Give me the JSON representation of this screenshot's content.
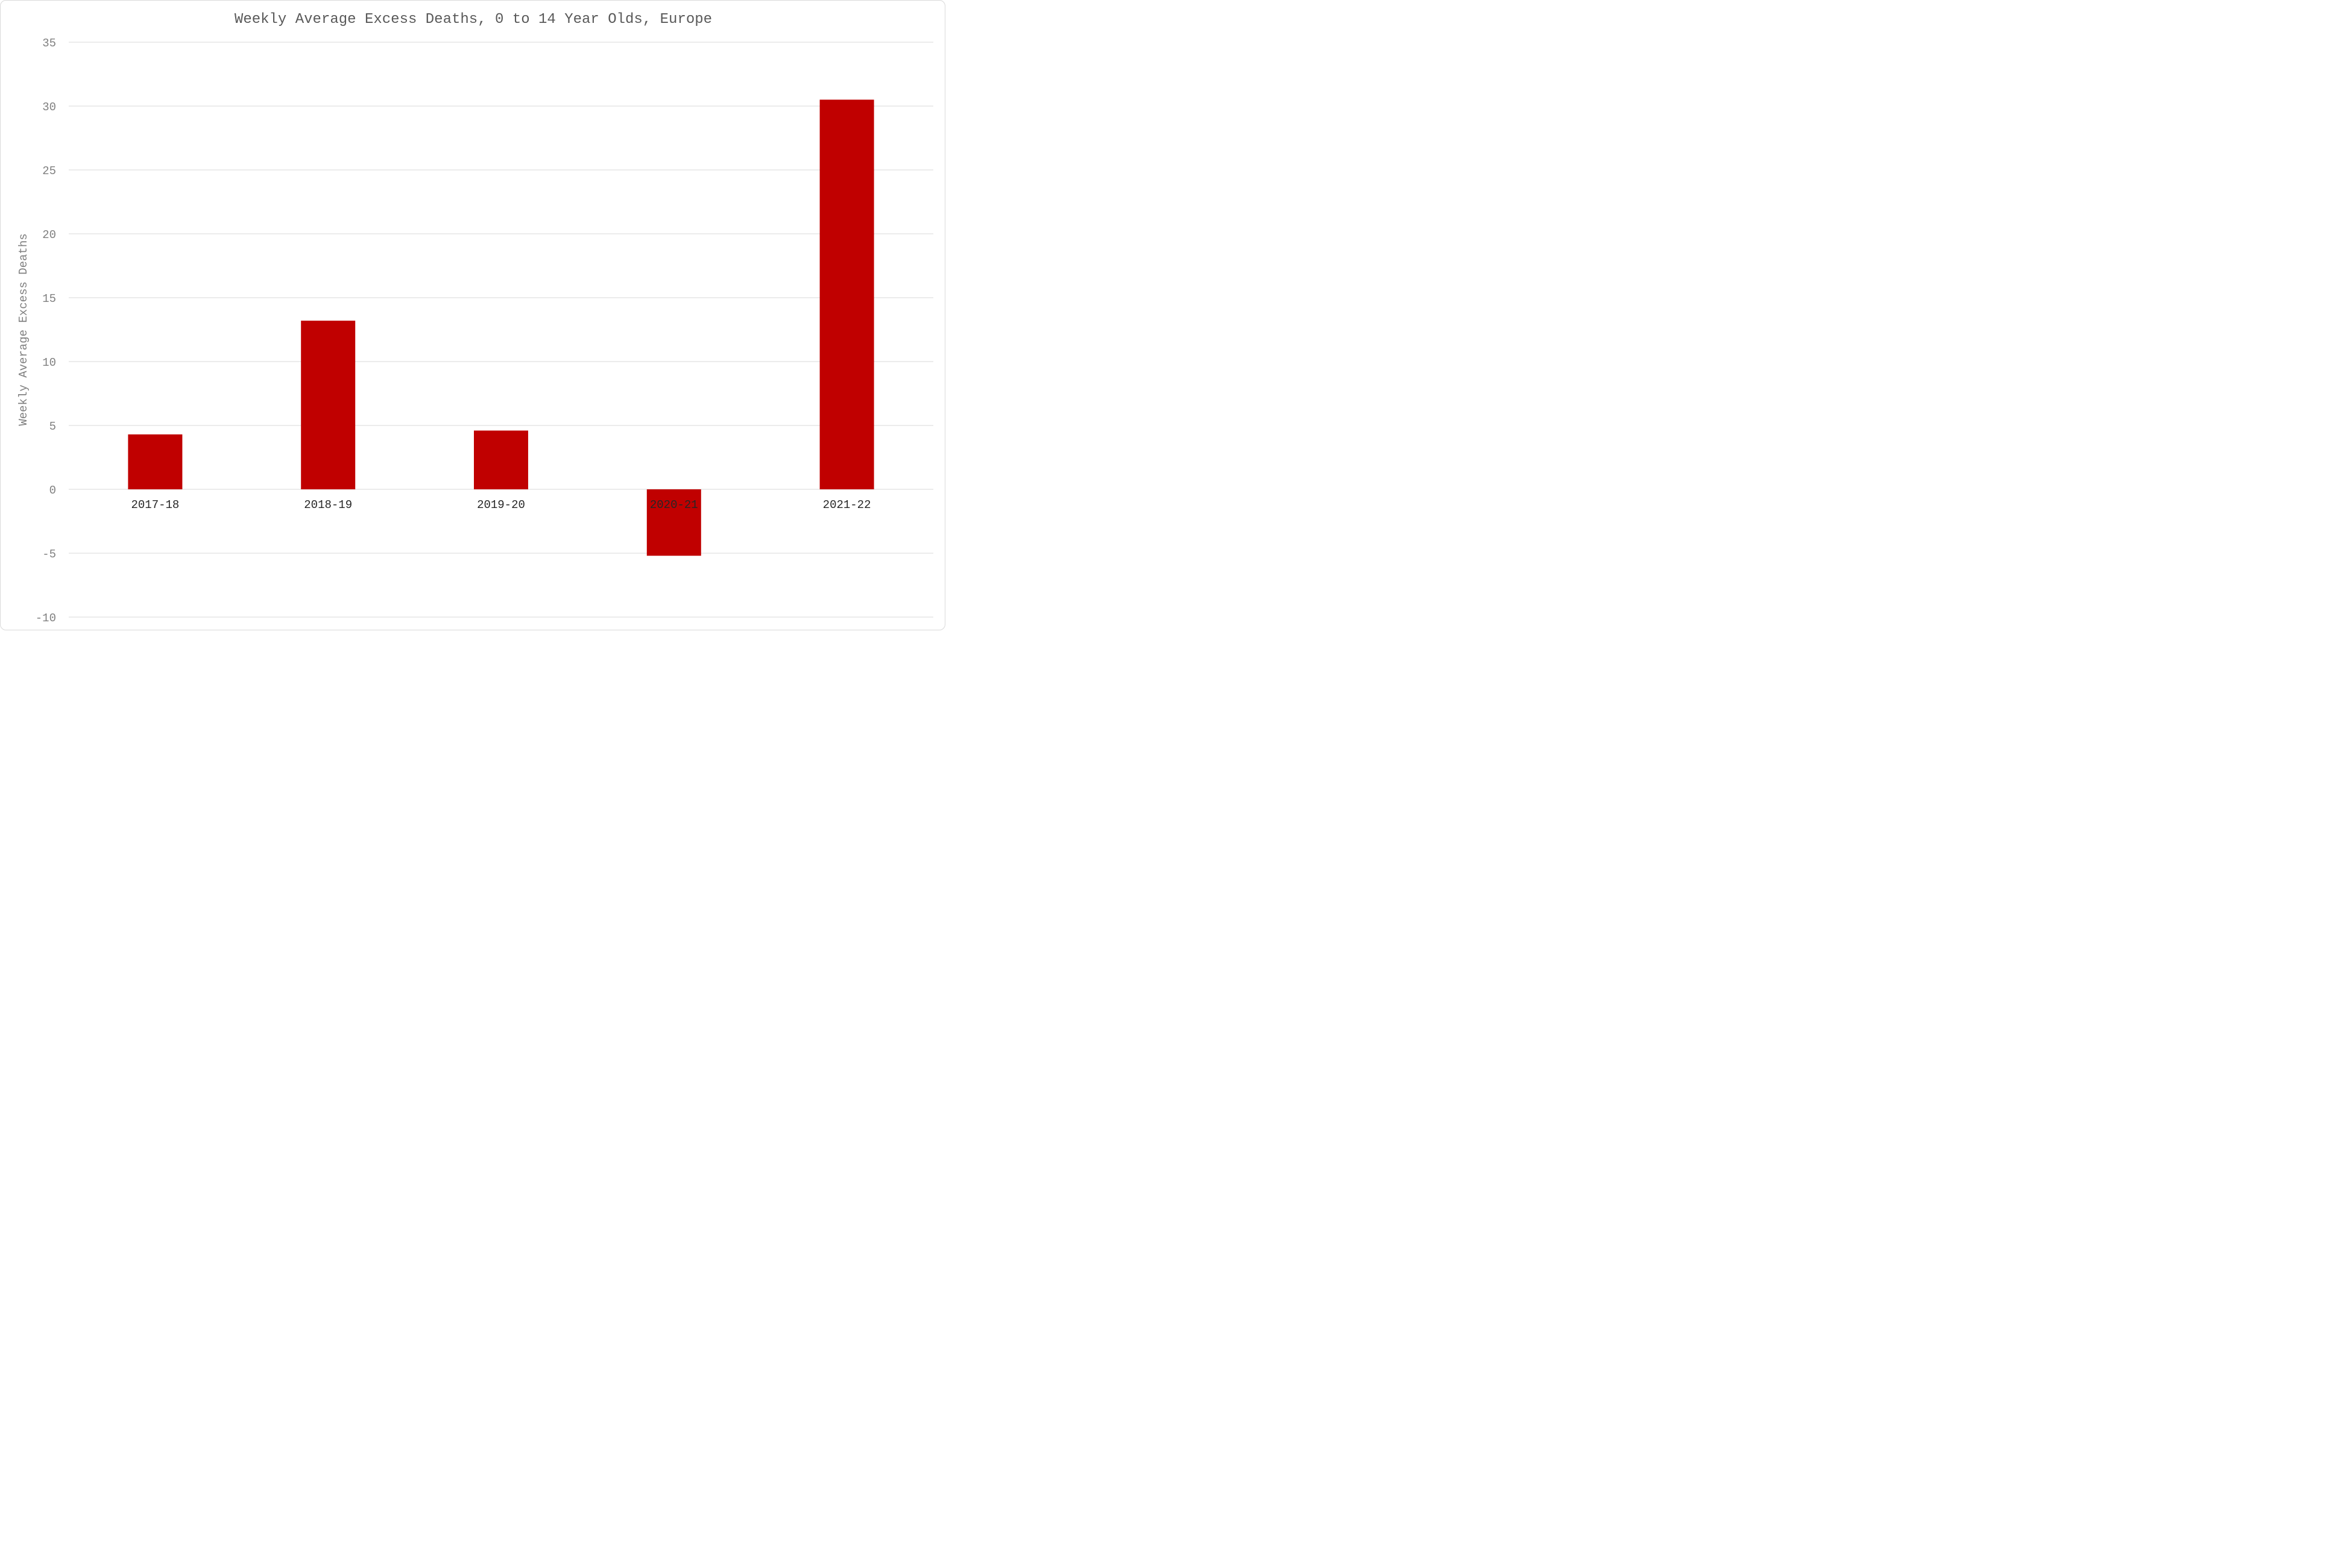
{
  "chart_data": {
    "type": "bar",
    "title": "Weekly Average Excess Deaths, 0 to 14 Year Olds, Europe",
    "xlabel": "",
    "ylabel": "Weekly Average Excess Deaths",
    "categories": [
      "2017-18",
      "2018-19",
      "2019-20",
      "2020-21",
      "2021-22"
    ],
    "values": [
      4.3,
      13.2,
      4.6,
      -5.2,
      30.5
    ],
    "ylim": [
      -10,
      35
    ],
    "yticks": [
      -10,
      -5,
      0,
      5,
      10,
      15,
      20,
      25,
      30,
      35
    ],
    "grid": true,
    "legend": "none",
    "bar_color": "#c00000"
  }
}
